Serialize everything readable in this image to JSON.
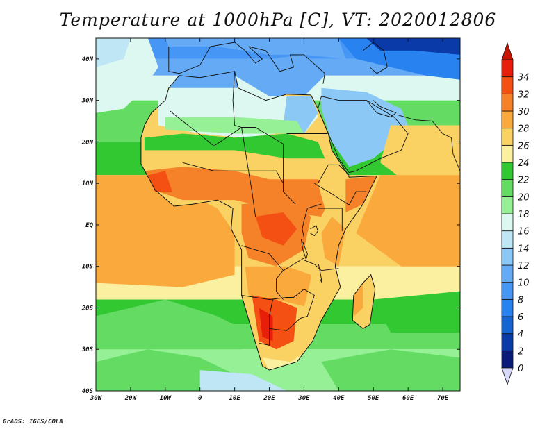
{
  "title": "Temperature at 1000hPa [C], VT: 2020012806",
  "credit": "GrADS: IGES/COLA",
  "map": {
    "lon_range": [
      -30,
      75
    ],
    "lat_range": [
      -40,
      45
    ],
    "lon_ticks": [
      {
        "value": -30,
        "label": "30W"
      },
      {
        "value": -20,
        "label": "20W"
      },
      {
        "value": -10,
        "label": "10W"
      },
      {
        "value": 0,
        "label": "0"
      },
      {
        "value": 10,
        "label": "10E"
      },
      {
        "value": 20,
        "label": "20E"
      },
      {
        "value": 30,
        "label": "30E"
      },
      {
        "value": 40,
        "label": "40E"
      },
      {
        "value": 50,
        "label": "50E"
      },
      {
        "value": 60,
        "label": "60E"
      },
      {
        "value": 70,
        "label": "70E"
      }
    ],
    "lat_ticks": [
      {
        "value": 40,
        "label": "40N"
      },
      {
        "value": 30,
        "label": "30N"
      },
      {
        "value": 20,
        "label": "20N"
      },
      {
        "value": 10,
        "label": "10N"
      },
      {
        "value": 0,
        "label": "EQ"
      },
      {
        "value": -10,
        "label": "10S"
      },
      {
        "value": -20,
        "label": "20S"
      },
      {
        "value": -30,
        "label": "30S"
      },
      {
        "value": -40,
        "label": "40S"
      }
    ]
  },
  "colorbar": {
    "levels": [
      "0",
      "2",
      "4",
      "6",
      "8",
      "10",
      "12",
      "14",
      "16",
      "18",
      "20",
      "22",
      "24",
      "26",
      "28",
      "30",
      "32",
      "34"
    ],
    "colors": [
      "#0a1a78",
      "#0a3aa8",
      "#1464d2",
      "#2882f0",
      "#4696f5",
      "#64aaf5",
      "#8cc8f5",
      "#bee6f5",
      "#dcf8f0",
      "#96f096",
      "#64dc64",
      "#32c832",
      "#faf0a0",
      "#fad264",
      "#faaa3c",
      "#f58228",
      "#f55014",
      "#e61e0a"
    ],
    "below_color": "#d8d8f8",
    "above_color": "#c81400"
  }
}
